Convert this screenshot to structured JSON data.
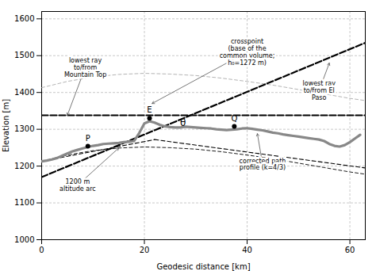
{
  "chart_data": {
    "type": "line",
    "xlabel": "Geodesic distance [km]",
    "ylabel": "Elevation [m]",
    "xlim": [
      0,
      63
    ],
    "ylim": [
      1000,
      1620
    ],
    "xticks": [
      0,
      20,
      40,
      60
    ],
    "yticks": [
      1000,
      1100,
      1200,
      1300,
      1400,
      1500,
      1600
    ],
    "grid": true,
    "series": [
      {
        "type": "line",
        "color": "black",
        "line_style": "dashed",
        "x": [
          0,
          5,
          10,
          15,
          20,
          25,
          30,
          35,
          40,
          45,
          50,
          55,
          60,
          63
        ],
        "values": [
          1213,
          1230,
          1242,
          1249,
          1252,
          1250,
          1246,
          1239,
          1230,
          1220,
          1208,
          1196,
          1184,
          1178
        ]
      },
      {
        "type": "line",
        "color": "#aaaaaa",
        "line_style": "dashed",
        "x": [
          0,
          5,
          10,
          15,
          20,
          25,
          30,
          35,
          40,
          45,
          50,
          55,
          60,
          63
        ],
        "values": [
          1413,
          1430,
          1442,
          1449,
          1452,
          1450,
          1446,
          1439,
          1430,
          1420,
          1408,
          1396,
          1384,
          1378
        ]
      },
      {
        "type": "line",
        "color": "black",
        "line_style": "heavy_dashed",
        "x": [
          0,
          63
        ],
        "values": [
          1338,
          1338
        ]
      },
      {
        "type": "line",
        "color": "black",
        "line_style": "heavy_dashed",
        "x": [
          0,
          63
        ],
        "values": [
          1170,
          1535
        ]
      },
      {
        "type": "line",
        "color": "black",
        "line_style": "medium_dashed",
        "x": [
          0,
          22
        ],
        "values": [
          1213,
          1272
        ]
      },
      {
        "type": "line",
        "color": "black",
        "line_style": "medium_dashed",
        "x": [
          22,
          63
        ],
        "values": [
          1272,
          1195
        ]
      },
      {
        "type": "line",
        "color": "#888888",
        "line_style": "thick_solid",
        "x": [
          0,
          1,
          2,
          3,
          4,
          5,
          6,
          7,
          8,
          9,
          10,
          11,
          12,
          13,
          14,
          15,
          16,
          17,
          18,
          19,
          20,
          21,
          22,
          23,
          24,
          25,
          26,
          27,
          28,
          29,
          30,
          31,
          32,
          33,
          34,
          35,
          36,
          37,
          38,
          39,
          40,
          41,
          42,
          43,
          44,
          45,
          46,
          47,
          48,
          49,
          50,
          51,
          52,
          53,
          54,
          55,
          56,
          57,
          58,
          59,
          60,
          61,
          62
        ],
        "values": [
          1213,
          1215,
          1218,
          1222,
          1228,
          1234,
          1240,
          1244,
          1248,
          1252,
          1255,
          1257,
          1260,
          1261,
          1262,
          1263,
          1265,
          1266,
          1268,
          1290,
          1316,
          1322,
          1318,
          1312,
          1308,
          1306,
          1305,
          1305,
          1307,
          1306,
          1305,
          1304,
          1303,
          1302,
          1300,
          1299,
          1298,
          1299,
          1300,
          1302,
          1303,
          1301,
          1299,
          1297,
          1294,
          1291,
          1289,
          1286,
          1284,
          1282,
          1280,
          1278,
          1276,
          1274,
          1272,
          1268,
          1260,
          1255,
          1253,
          1257,
          1265,
          1275,
          1285
        ]
      },
      {
        "type": "scatter",
        "color": "black",
        "marker": "o",
        "x": [
          21.0,
          37.5,
          9.0
        ],
        "values": [
          1330,
          1308,
          1254
        ],
        "labels": [
          "E",
          "Q",
          "P"
        ]
      }
    ],
    "annotations": [
      {
        "text": "θ",
        "x": 27.5,
        "y": 1318
      },
      {
        "text": "lowest ray\nto/from\nMountain Top",
        "x": 8.5,
        "y": 1468,
        "arrow_x": 5,
        "arrow_y": 1338
      },
      {
        "text": "crosspoint\n(base of the\ncommon volume;\nh₀=1272 m)",
        "x": 40,
        "y": 1510,
        "arrow_x": 21.5,
        "arrow_y": 1370
      },
      {
        "text": "lowest ray\nto/from El\nPaso",
        "x": 54,
        "y": 1405,
        "arrow_x": 56,
        "arrow_y": 1480
      },
      {
        "text": "1200 m\naltitude arc",
        "x": 7,
        "y": 1148,
        "arrow_x": 15,
        "arrow_y": 1249
      },
      {
        "text": "corrected path\nprofile (k=4/3)",
        "x": 43,
        "y": 1205,
        "arrow_x": 42,
        "arrow_y": 1288
      }
    ]
  }
}
